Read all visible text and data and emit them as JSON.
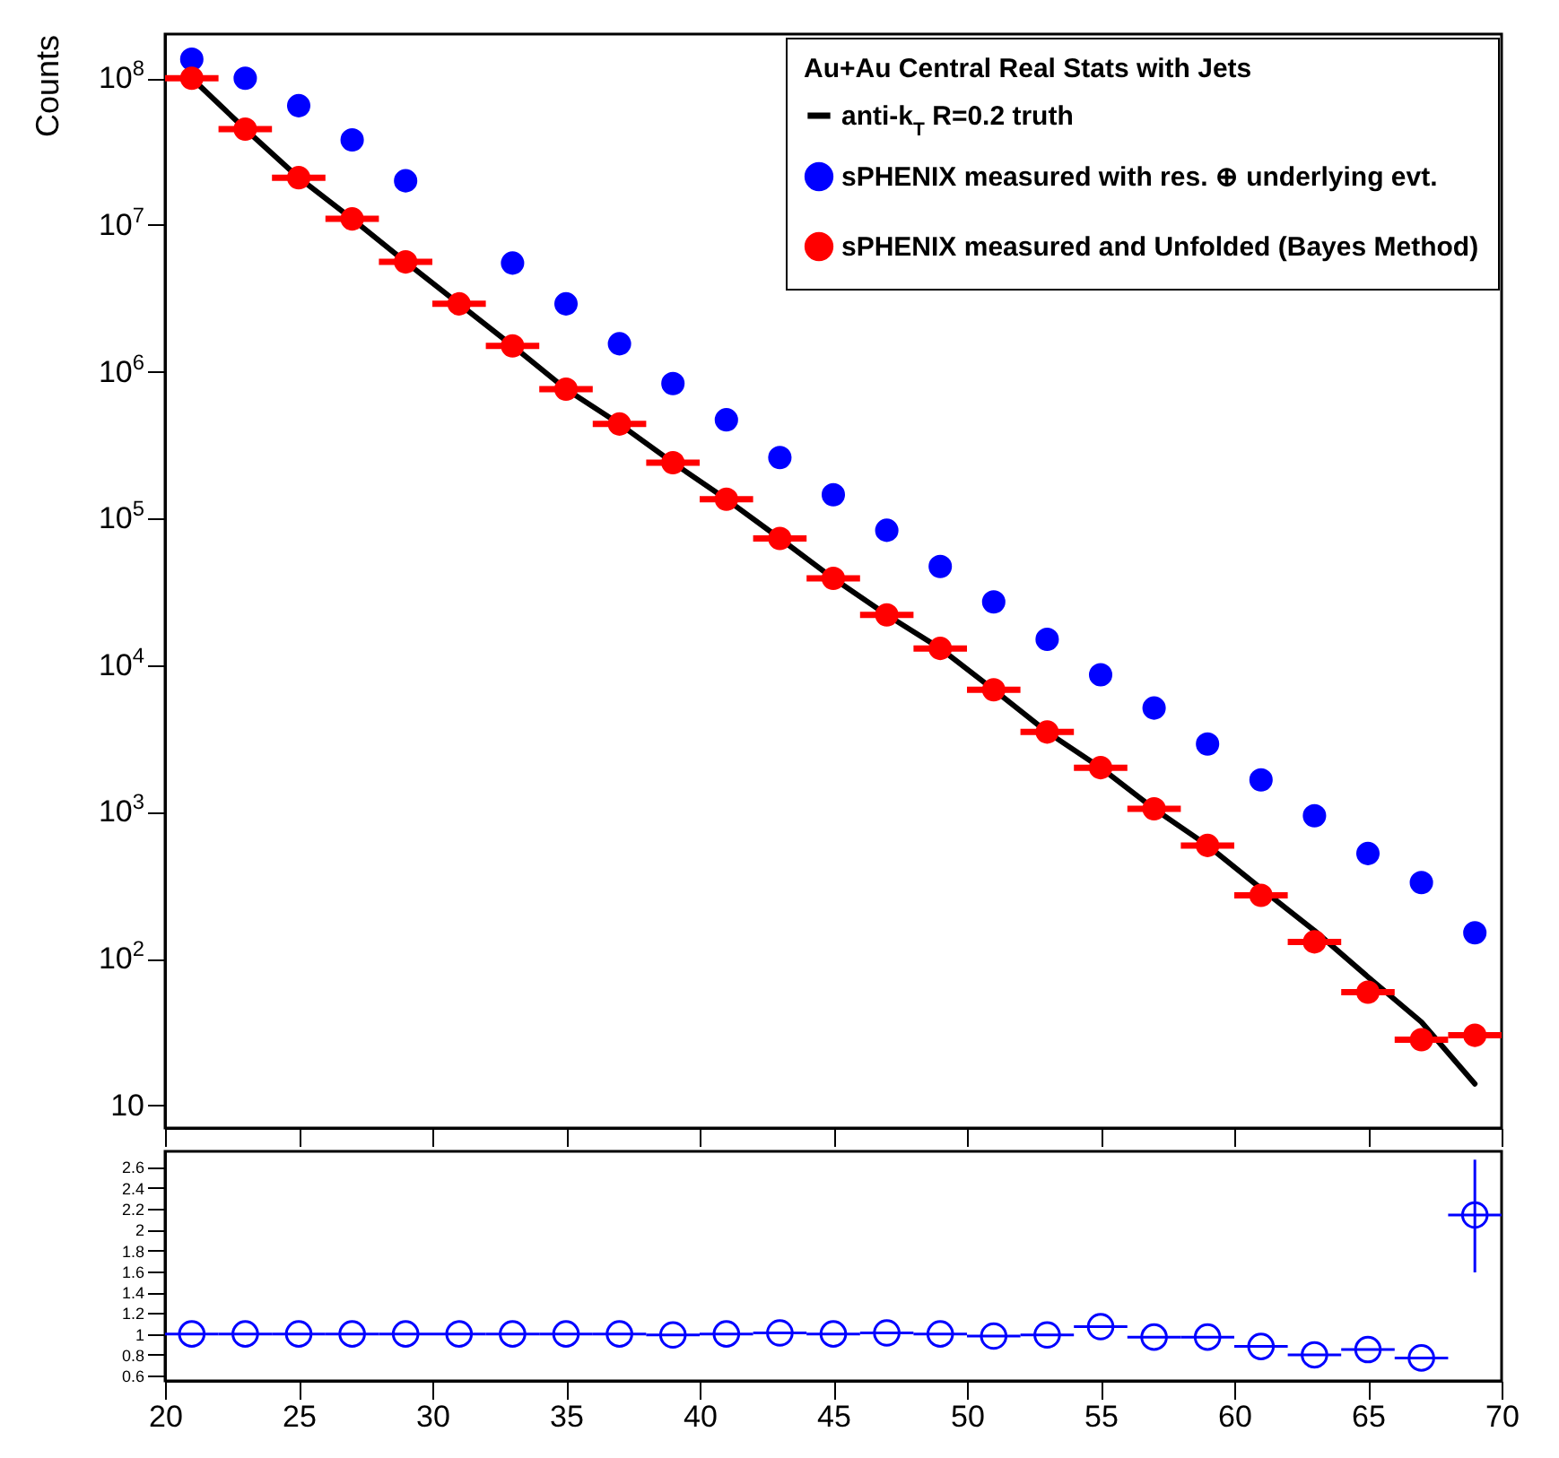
{
  "chart_data": [
    {
      "type": "scatter",
      "legend_title": "Au+Au Central Real Stats with Jets",
      "ylabel": "Counts",
      "log": "y",
      "legend": "top right",
      "tick_labels": "y",
      "x": [
        21,
        23,
        25,
        27,
        29,
        31,
        33,
        35,
        37,
        39,
        41,
        43,
        45,
        47,
        49,
        51,
        53,
        55,
        57,
        59,
        61,
        63,
        65,
        67,
        69
      ],
      "xlim": [
        20,
        70
      ],
      "xticks": [
        20,
        25,
        30,
        35,
        40,
        45,
        50,
        55,
        60,
        65,
        70
      ],
      "ylim": [
        7,
        200000000
      ],
      "yticks": [
        {
          "value": 10,
          "label": "10"
        },
        {
          "value": 100,
          "label": "10$^{2}$"
        },
        {
          "value": 1000,
          "label": "10$^{3}$"
        },
        {
          "value": 10000,
          "label": "10$^{4}$"
        },
        {
          "value": 100000,
          "label": "10$^{5}$"
        },
        {
          "value": 1000000,
          "label": "10$^{6}$"
        },
        {
          "value": 10000000,
          "label": "10$^{7}$"
        },
        {
          "value": 100000000,
          "label": "10$^{8}$"
        }
      ],
      "series": [
        {
          "name": "anti-k$_{T}$ R=0.2 truth",
          "type": "line",
          "color": "#000000",
          "values": [
            100000000,
            45000000,
            21000000,
            11000000,
            5600000,
            2900000,
            1500000,
            760000,
            440000,
            240000,
            135000,
            73000,
            39000,
            22000,
            13000,
            6800,
            3500,
            2000,
            1050,
            590,
            300,
            155,
            75,
            37,
            14
          ]
        },
        {
          "name": "sPHENIX measured with res. ⊕ underlying evt.",
          "marker": "circle",
          "color": "#0000ff",
          "values": [
            135000000,
            100000000,
            65000000,
            38000000,
            20000000,
            null,
            5500000,
            2900000,
            1550000,
            830000,
            470000,
            260000,
            145000,
            83000,
            47000,
            27000,
            15000,
            8600,
            5100,
            2900,
            1650,
            940,
            520,
            330,
            150
          ]
        },
        {
          "name": "sPHENIX measured and Unfolded (Bayes Method)",
          "marker": "circle",
          "color": "#ff0000",
          "values": [
            100000000,
            45000000,
            21000000,
            11000000,
            5600000,
            2900000,
            1500000,
            760000,
            440000,
            240000,
            135000,
            73000,
            39000,
            22000,
            13000,
            6800,
            3500,
            2000,
            1050,
            590,
            270,
            130,
            59,
            28,
            30
          ],
          "xerrors": [
            1,
            1,
            1,
            1,
            1,
            1,
            1,
            1,
            1,
            1,
            1,
            1,
            1,
            1,
            1,
            1,
            1,
            1,
            1,
            1,
            1,
            1,
            1,
            1,
            1
          ]
        }
      ]
    },
    {
      "type": "scatter",
      "x": [
        21,
        23,
        25,
        27,
        29,
        31,
        33,
        35,
        37,
        39,
        41,
        43,
        45,
        47,
        49,
        51,
        53,
        55,
        57,
        59,
        61,
        63,
        65,
        67,
        69
      ],
      "xlim": [
        20,
        70
      ],
      "xticks": [
        20,
        25,
        30,
        35,
        40,
        45,
        50,
        55,
        60,
        65,
        70
      ],
      "ylim": [
        0.55,
        2.75
      ],
      "yticks": [
        0.6,
        0.8,
        1,
        1.2,
        1.4,
        1.6,
        1.8,
        2,
        2.2,
        2.4,
        2.6
      ],
      "series": [
        {
          "color": "#0000ff",
          "marker": "circle",
          "values": [
            1,
            1,
            1,
            1,
            1,
            1,
            1,
            1,
            1,
            0.99,
            1,
            1.01,
            1,
            1.01,
            1,
            0.98,
            0.99,
            1.07,
            0.97,
            0.97,
            0.88,
            0.8,
            0.85,
            0.77,
            2.14
          ],
          "xerrors": [
            1,
            1,
            1,
            1,
            1,
            1,
            1,
            1,
            1,
            1,
            1,
            1,
            1,
            1,
            1,
            1,
            1,
            1,
            1,
            1,
            1,
            1,
            1,
            1,
            1
          ],
          "errors": [
            null,
            null,
            null,
            null,
            null,
            null,
            null,
            null,
            null,
            null,
            null,
            null,
            null,
            null,
            null,
            null,
            null,
            null,
            null,
            null,
            null,
            null,
            null,
            null,
            [
              1.59,
              2.67
            ]
          ]
        }
      ]
    }
  ]
}
